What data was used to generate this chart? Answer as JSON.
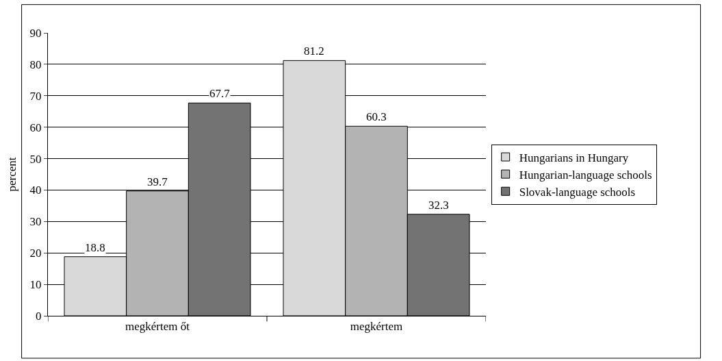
{
  "chart_data": {
    "type": "bar",
    "ylabel": "percent",
    "categories": [
      "megkértem őt",
      "megkértem"
    ],
    "series": [
      {
        "name": "Hungarians in Hungary",
        "color": "#d9d9d9",
        "values": [
          18.8,
          81.2
        ]
      },
      {
        "name": "Hungarian-language schools",
        "color": "#b3b3b3",
        "values": [
          39.7,
          60.3
        ]
      },
      {
        "name": "Slovak-language schools",
        "color": "#737373",
        "values": [
          67.7,
          32.3
        ]
      }
    ],
    "ylim": [
      0,
      90
    ],
    "yticks": [
      0,
      10,
      20,
      30,
      40,
      50,
      60,
      70,
      80,
      90
    ],
    "grid": "y",
    "legend": "right",
    "data_labels": true
  }
}
